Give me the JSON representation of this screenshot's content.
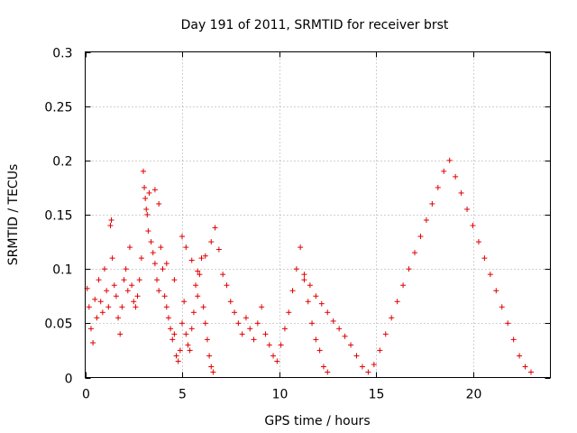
{
  "chart_data": {
    "type": "scatter",
    "title": "Day 191 of 2011, SRMTID for receiver brst",
    "xlabel": "GPS time / hours",
    "ylabel": "SRMTID / TECUs",
    "xlim": [
      0,
      24
    ],
    "ylim": [
      0,
      0.3
    ],
    "x_ticks": [
      0,
      5,
      10,
      15,
      20
    ],
    "x_tick_labels": [
      "0",
      "5",
      "10",
      "15",
      "20"
    ],
    "y_ticks": [
      0,
      0.05,
      0.1,
      0.15,
      0.2,
      0.25,
      0.3
    ],
    "y_tick_labels": [
      "0",
      "0.05",
      "0.1",
      "0.15",
      "0.2",
      "0.25",
      "0.3"
    ],
    "grid": true,
    "marker": "+",
    "colors": {
      "points": "#e00000",
      "grid": "#a0a0a0",
      "axes": "#000000"
    },
    "series": [
      {
        "name": "SRMTID",
        "points": [
          [
            0.1,
            0.082
          ],
          [
            0.2,
            0.065
          ],
          [
            0.3,
            0.045
          ],
          [
            0.4,
            0.032
          ],
          [
            0.5,
            0.072
          ],
          [
            0.6,
            0.055
          ],
          [
            0.7,
            0.09
          ],
          [
            0.8,
            0.07
          ],
          [
            0.9,
            0.06
          ],
          [
            1.0,
            0.1
          ],
          [
            1.1,
            0.08
          ],
          [
            1.2,
            0.065
          ],
          [
            1.3,
            0.14
          ],
          [
            1.35,
            0.145
          ],
          [
            1.4,
            0.11
          ],
          [
            1.5,
            0.085
          ],
          [
            1.6,
            0.075
          ],
          [
            1.7,
            0.055
          ],
          [
            1.8,
            0.04
          ],
          [
            1.9,
            0.065
          ],
          [
            2.0,
            0.09
          ],
          [
            2.1,
            0.1
          ],
          [
            2.2,
            0.08
          ],
          [
            2.3,
            0.12
          ],
          [
            2.4,
            0.085
          ],
          [
            2.5,
            0.07
          ],
          [
            2.6,
            0.065
          ],
          [
            2.7,
            0.075
          ],
          [
            2.8,
            0.09
          ],
          [
            2.9,
            0.11
          ],
          [
            3.0,
            0.19
          ],
          [
            3.05,
            0.175
          ],
          [
            3.1,
            0.165
          ],
          [
            3.15,
            0.155
          ],
          [
            3.2,
            0.15
          ],
          [
            3.25,
            0.135
          ],
          [
            3.3,
            0.17
          ],
          [
            3.4,
            0.125
          ],
          [
            3.5,
            0.115
          ],
          [
            3.6,
            0.105
          ],
          [
            3.7,
            0.09
          ],
          [
            3.8,
            0.08
          ],
          [
            3.9,
            0.12
          ],
          [
            4.0,
            0.1
          ],
          [
            4.1,
            0.075
          ],
          [
            4.2,
            0.065
          ],
          [
            4.3,
            0.055
          ],
          [
            4.4,
            0.045
          ],
          [
            4.5,
            0.035
          ],
          [
            4.6,
            0.04
          ],
          [
            4.7,
            0.02
          ],
          [
            4.8,
            0.015
          ],
          [
            4.9,
            0.025
          ],
          [
            5.0,
            0.05
          ],
          [
            5.1,
            0.07
          ],
          [
            5.2,
            0.04
          ],
          [
            5.3,
            0.03
          ],
          [
            5.4,
            0.025
          ],
          [
            5.5,
            0.045
          ],
          [
            5.6,
            0.06
          ],
          [
            5.7,
            0.085
          ],
          [
            5.8,
            0.075
          ],
          [
            5.9,
            0.095
          ],
          [
            6.0,
            0.11
          ],
          [
            6.1,
            0.065
          ],
          [
            6.2,
            0.05
          ],
          [
            6.3,
            0.035
          ],
          [
            6.4,
            0.02
          ],
          [
            6.5,
            0.01
          ],
          [
            6.6,
            0.005
          ],
          [
            3.6,
            0.173
          ],
          [
            3.8,
            0.16
          ],
          [
            4.2,
            0.105
          ],
          [
            4.6,
            0.09
          ],
          [
            5.0,
            0.13
          ],
          [
            5.2,
            0.12
          ],
          [
            5.5,
            0.108
          ],
          [
            5.8,
            0.098
          ],
          [
            6.2,
            0.112
          ],
          [
            6.5,
            0.125
          ],
          [
            6.7,
            0.138
          ],
          [
            6.9,
            0.118
          ],
          [
            7.1,
            0.095
          ],
          [
            7.3,
            0.085
          ],
          [
            7.5,
            0.07
          ],
          [
            7.7,
            0.06
          ],
          [
            7.9,
            0.05
          ],
          [
            8.1,
            0.04
          ],
          [
            8.3,
            0.055
          ],
          [
            8.5,
            0.045
          ],
          [
            8.7,
            0.035
          ],
          [
            8.9,
            0.05
          ],
          [
            9.1,
            0.065
          ],
          [
            9.3,
            0.04
          ],
          [
            9.5,
            0.03
          ],
          [
            9.7,
            0.02
          ],
          [
            9.9,
            0.015
          ],
          [
            10.1,
            0.03
          ],
          [
            10.3,
            0.045
          ],
          [
            10.5,
            0.06
          ],
          [
            10.7,
            0.08
          ],
          [
            10.9,
            0.1
          ],
          [
            11.1,
            0.12
          ],
          [
            11.3,
            0.09
          ],
          [
            11.5,
            0.07
          ],
          [
            11.7,
            0.05
          ],
          [
            11.9,
            0.035
          ],
          [
            12.1,
            0.025
          ],
          [
            12.3,
            0.01
          ],
          [
            12.5,
            0.005
          ],
          [
            11.3,
            0.095
          ],
          [
            11.6,
            0.085
          ],
          [
            11.9,
            0.075
          ],
          [
            12.2,
            0.068
          ],
          [
            12.5,
            0.06
          ],
          [
            12.8,
            0.052
          ],
          [
            13.1,
            0.045
          ],
          [
            13.4,
            0.038
          ],
          [
            13.7,
            0.03
          ],
          [
            14.0,
            0.02
          ],
          [
            14.3,
            0.01
          ],
          [
            14.6,
            0.005
          ],
          [
            14.9,
            0.012
          ],
          [
            15.2,
            0.025
          ],
          [
            15.5,
            0.04
          ],
          [
            15.8,
            0.055
          ],
          [
            16.1,
            0.07
          ],
          [
            16.4,
            0.085
          ],
          [
            16.7,
            0.1
          ],
          [
            17.0,
            0.115
          ],
          [
            17.3,
            0.13
          ],
          [
            17.6,
            0.145
          ],
          [
            17.9,
            0.16
          ],
          [
            18.2,
            0.175
          ],
          [
            18.5,
            0.19
          ],
          [
            18.8,
            0.2
          ],
          [
            19.1,
            0.185
          ],
          [
            19.4,
            0.17
          ],
          [
            19.7,
            0.155
          ],
          [
            20.0,
            0.14
          ],
          [
            20.3,
            0.125
          ],
          [
            20.6,
            0.11
          ],
          [
            20.9,
            0.095
          ],
          [
            21.2,
            0.08
          ],
          [
            21.5,
            0.065
          ],
          [
            21.8,
            0.05
          ],
          [
            22.1,
            0.035
          ],
          [
            22.4,
            0.02
          ],
          [
            22.7,
            0.01
          ],
          [
            23.0,
            0.005
          ]
        ]
      }
    ]
  }
}
